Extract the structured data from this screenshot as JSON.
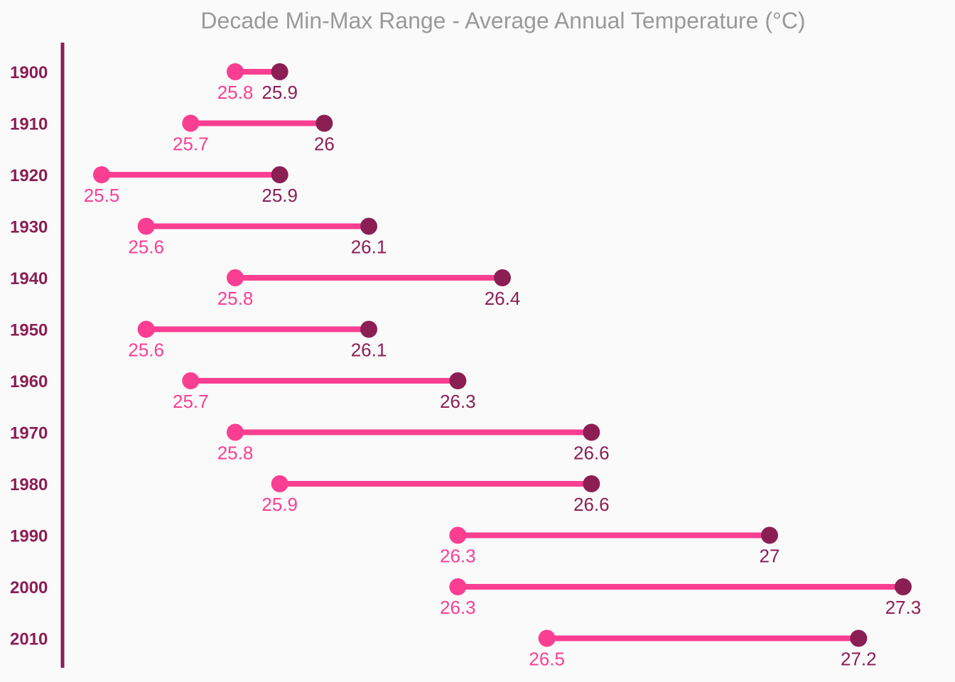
{
  "chart_data": {
    "type": "dumbbell",
    "title": "Decade Min-Max Range - Average Annual Temperature (°C)",
    "categories": [
      "1900",
      "1910",
      "1920",
      "1930",
      "1940",
      "1950",
      "1960",
      "1970",
      "1980",
      "1990",
      "2000",
      "2010"
    ],
    "series": [
      {
        "values": [
          25.8,
          25.7,
          25.5,
          25.6,
          25.8,
          25.6,
          25.7,
          25.8,
          25.9,
          26.3,
          26.3,
          26.5
        ]
      },
      {
        "values": [
          25.9,
          26.0,
          25.9,
          26.1,
          26.4,
          26.1,
          26.3,
          26.6,
          26.6,
          27.0,
          27.3,
          27.2
        ]
      }
    ],
    "xlim": [
      25.3,
      27.5
    ],
    "grid": false,
    "colors": {
      "min": "#fa3f93",
      "max": "#8b1f54",
      "connector": "#fa3f93",
      "axis": "#8b1f54",
      "category_text": "#8b1f54",
      "title": "#999999",
      "background": "#fafafa"
    }
  }
}
